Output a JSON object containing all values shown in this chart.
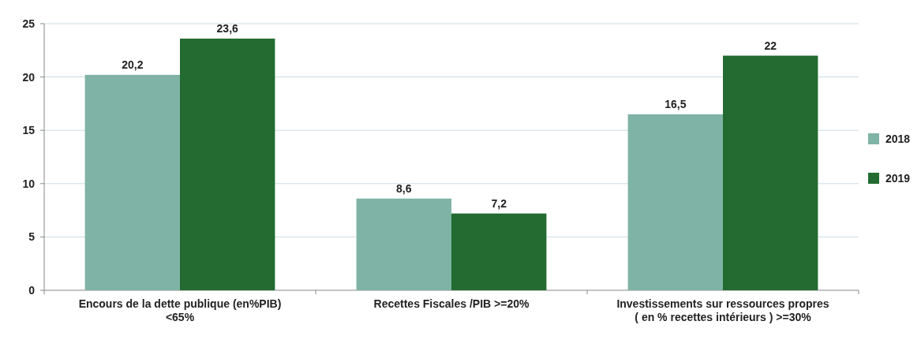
{
  "chart_data": {
    "type": "bar",
    "categories": [
      "Encours de la dette publique (en%PIB) <65%",
      "Recettes Fiscales /PIB >=20%",
      "Investissements sur ressources propres ( en % recettes intérieurs ) >=30%"
    ],
    "series": [
      {
        "name": "2018",
        "color": "#7fb3a5",
        "values": [
          20.2,
          8.6,
          16.5
        ],
        "value_labels": [
          "20,2",
          "8,6",
          "16,5"
        ]
      },
      {
        "name": "2019",
        "color": "#236b31",
        "values": [
          23.6,
          7.2,
          22
        ],
        "value_labels": [
          "23,6",
          "7,2",
          "22"
        ]
      }
    ],
    "ylim": [
      0,
      25
    ],
    "yticks": [
      0,
      5,
      10,
      15,
      20,
      25
    ],
    "grid": "y",
    "legend": "right"
  }
}
